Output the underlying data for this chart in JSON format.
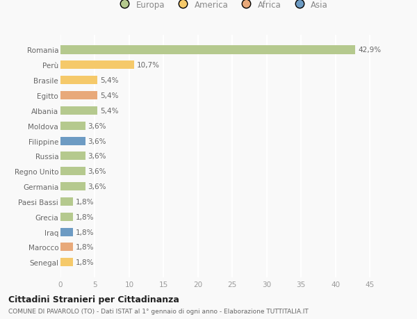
{
  "countries": [
    "Romania",
    "Perù",
    "Brasile",
    "Egitto",
    "Albania",
    "Moldova",
    "Filippine",
    "Russia",
    "Regno Unito",
    "Germania",
    "Paesi Bassi",
    "Grecia",
    "Iraq",
    "Marocco",
    "Senegal"
  ],
  "values": [
    42.9,
    10.7,
    5.4,
    5.4,
    5.4,
    3.6,
    3.6,
    3.6,
    3.6,
    3.6,
    1.8,
    1.8,
    1.8,
    1.8,
    1.8
  ],
  "labels": [
    "42,9%",
    "10,7%",
    "5,4%",
    "5,4%",
    "5,4%",
    "3,6%",
    "3,6%",
    "3,6%",
    "3,6%",
    "3,6%",
    "1,8%",
    "1,8%",
    "1,8%",
    "1,8%",
    "1,8%"
  ],
  "colors": [
    "#b5c98e",
    "#f5c96a",
    "#f5c96a",
    "#e8a97a",
    "#b5c98e",
    "#b5c98e",
    "#6d9bc3",
    "#b5c98e",
    "#b5c98e",
    "#b5c98e",
    "#b5c98e",
    "#b5c98e",
    "#6d9bc3",
    "#e8a97a",
    "#f5c96a"
  ],
  "legend": {
    "Europa": "#b5c98e",
    "America": "#f5c96a",
    "Africa": "#e8a97a",
    "Asia": "#6d9bc3"
  },
  "xlim": [
    0,
    47
  ],
  "xticks": [
    0,
    5,
    10,
    15,
    20,
    25,
    30,
    35,
    40,
    45
  ],
  "title": "Cittadini Stranieri per Cittadinanza",
  "subtitle": "COMUNE DI PAVAROLO (TO) - Dati ISTAT al 1° gennaio di ogni anno - Elaborazione TUTTITALIA.IT",
  "bg_color": "#f9f9f9",
  "bar_height": 0.55,
  "grid_color": "#ffffff",
  "label_fontsize": 7.5,
  "tick_fontsize": 7.5,
  "ylabel_fontsize": 7.5
}
